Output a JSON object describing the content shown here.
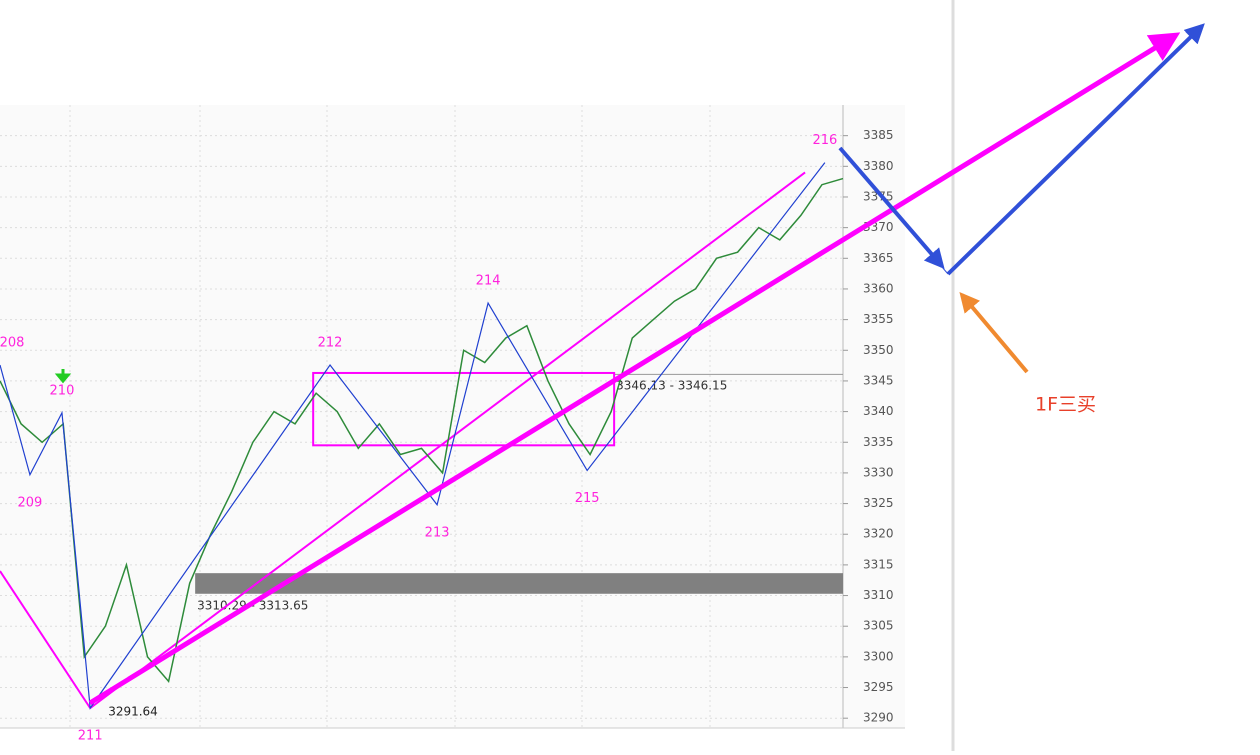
{
  "chart_data": {
    "type": "line",
    "ylim": [
      3288.4,
      3390
    ],
    "yticks": [
      3290,
      3295,
      3300,
      3305,
      3310,
      3315,
      3320,
      3325,
      3330,
      3335,
      3340,
      3345,
      3350,
      3355,
      3360,
      3365,
      3370,
      3375,
      3380,
      3385
    ],
    "xlim": [
      0,
      200
    ],
    "grid": true,
    "series": [
      {
        "color": "#2e8b3a",
        "x": [
          0,
          5,
          10,
          15,
          20,
          25,
          30,
          35,
          40,
          45,
          50,
          55,
          60,
          65,
          70,
          75,
          80,
          85,
          90,
          95,
          100,
          105,
          110,
          115,
          120,
          125,
          130,
          135,
          140,
          145,
          150,
          155,
          160,
          165,
          170,
          175,
          180,
          185,
          190,
          195,
          200
        ],
        "values": [
          3345,
          3338,
          3335,
          3338,
          3300,
          3305,
          3315,
          3300,
          3296,
          3312,
          3320,
          3327,
          3335,
          3340,
          3338,
          3343,
          3340,
          3334,
          3338,
          3333,
          3334,
          3330,
          3350,
          3348,
          3352,
          3354,
          3345,
          3338,
          3333,
          3340,
          3352,
          3355,
          3358,
          3360,
          3365,
          3366,
          3370,
          3368,
          3372,
          3377,
          3378
        ]
      }
    ],
    "pivots": [
      {
        "label": "208",
        "x": 0,
        "price": 3347.6
      },
      {
        "label": "209",
        "x": 7.1,
        "price": 3329.7
      },
      {
        "label": "210",
        "x": 14.7,
        "price": 3339.8
      },
      {
        "label": "211",
        "x": 21.4,
        "price": 3291.64,
        "price_label": "3291.64"
      },
      {
        "label": "212",
        "x": 78.3,
        "price": 3347.6
      },
      {
        "label": "213",
        "x": 103.7,
        "price": 3324.8
      },
      {
        "label": "214",
        "x": 115.8,
        "price": 3357.7
      },
      {
        "label": "215",
        "x": 139.3,
        "price": 3330.4
      },
      {
        "label": "216",
        "x": 195.7,
        "price": 3380.6
      }
    ],
    "zones": [
      {
        "low": 3310.29,
        "high": 3313.65,
        "label": "3310.29 - 3313.65",
        "x": 46.3,
        "color": "#808080"
      },
      {
        "low": 3346.13,
        "high": 3346.15,
        "label": "3346.13 - 3346.15",
        "x": 145.7,
        "color": "#999999"
      }
    ],
    "box": {
      "x": [
        74.3,
        145.7
      ],
      "low": 3334.5,
      "high": 3346.3,
      "color": "#ff00ff"
    },
    "trendlines": [
      {
        "from": [
          21.4,
          3291.64
        ],
        "to": [
          191,
          3379
        ],
        "color": "#ff00ff"
      },
      {
        "from": [
          0,
          3314
        ],
        "to": [
          21.4,
          3291.64
        ],
        "color": "#ff00ff"
      }
    ],
    "annotation": "1F三买"
  }
}
